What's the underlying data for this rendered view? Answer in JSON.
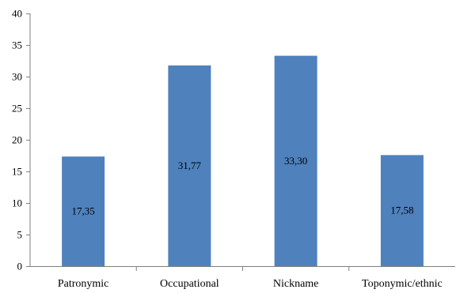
{
  "chart_data": {
    "type": "bar",
    "categories": [
      "Patronymic",
      "Occupational",
      "Nickname",
      "Toponymic/ethnic"
    ],
    "values": [
      17.35,
      31.77,
      33.3,
      17.58
    ],
    "data_labels": [
      "17,35",
      "31,77",
      "33,30",
      "17,58"
    ],
    "ylim": [
      0,
      40
    ],
    "yticks": [
      0,
      5,
      10,
      15,
      20,
      25,
      30,
      35,
      40
    ],
    "bar_color": "#4f81bd",
    "grid": false,
    "legend": "none",
    "title": "",
    "xlabel": "",
    "ylabel": ""
  }
}
